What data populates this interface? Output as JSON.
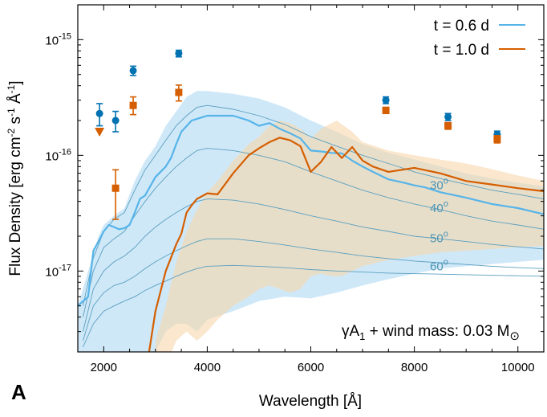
{
  "panel_label": "A",
  "chart_data": {
    "type": "line",
    "xlabel": "Wavelength [Å]",
    "ylabel": {
      "main": "Flux Density [erg cm",
      "sup1": "-2",
      "mid1": " s",
      "sup2": "-1",
      "mid2": " Å",
      "sup3": "-1",
      "end": "]"
    },
    "xlim": [
      1500,
      10500
    ],
    "ylim": [
      2e-18,
      2e-15
    ],
    "yscale": "log",
    "x_ticks": [
      2000,
      4000,
      6000,
      8000,
      10000
    ],
    "x_tick_labels": [
      "2000",
      "4000",
      "6000",
      "8000",
      "10000"
    ],
    "y_ticks": [
      1e-17,
      1e-16,
      1e-15
    ],
    "y_tick_labels": [
      {
        "base": "10",
        "exp": "-17"
      },
      {
        "base": "10",
        "exp": "-16"
      },
      {
        "base": "10",
        "exp": "-15"
      }
    ],
    "annotation": {
      "prefix": "γA",
      "sub": "1",
      "mid": " + wind mass: 0.03 M",
      "sub2": "⊙"
    },
    "colors": {
      "blue": "#56B4E9",
      "blue_band": "#bfe0f5",
      "blue_thin": "#5a9fbf",
      "orange": "#D55E00",
      "orange_band": "#f7d7ab",
      "blue_data": "#0072B2",
      "orange_data": "#D55E00",
      "angle_label": "#4a94b4"
    },
    "series": [
      {
        "name": "t = 0.6 d",
        "color": "#56B4E9",
        "x": [
          1500,
          1700,
          1800,
          1900,
          2000,
          2100,
          2200,
          2300,
          2400,
          2500,
          2600,
          2700,
          2800,
          3000,
          3200,
          3300,
          3400,
          3500,
          3700,
          4000,
          4200,
          4500,
          4800,
          5000,
          5200,
          5400,
          5600,
          5800,
          6000,
          6200,
          6400,
          6600,
          6800,
          7000,
          7200,
          7500,
          7800,
          8000,
          8200,
          8500,
          9000,
          9500,
          10000,
          10500
        ],
        "y": [
          5e-18,
          6e-18,
          1.5e-17,
          1.8e-17,
          2.2e-17,
          2.5e-17,
          2.4e-17,
          2.3e-17,
          2.35e-17,
          2.5e-17,
          3.2e-17,
          4.2e-17,
          4.5e-17,
          6.5e-17,
          8e-17,
          9.5e-17,
          1.25e-16,
          1.6e-16,
          2e-16,
          2.2e-16,
          2.2e-16,
          2.2e-16,
          2e-16,
          1.8e-16,
          1.9e-16,
          1.7e-16,
          1.55e-16,
          1.4e-16,
          1.1e-16,
          1.08e-16,
          1.05e-16,
          1.04e-16,
          9e-17,
          8e-17,
          7.2e-17,
          6.2e-17,
          5.8e-17,
          5.5e-17,
          5.3e-17,
          4.8e-17,
          4.3e-17,
          3.8e-17,
          3.5e-17,
          3.1e-17
        ]
      },
      {
        "name": "t = 1.0 d",
        "color": "#D55E00",
        "x": [
          2800,
          3000,
          3200,
          3400,
          3500,
          3600,
          3700,
          3800,
          4000,
          4200,
          4500,
          4800,
          5000,
          5200,
          5400,
          5600,
          5800,
          6000,
          6200,
          6400,
          6600,
          6800,
          7000,
          7200,
          7500,
          8000,
          8500,
          9000,
          9500,
          10000,
          10500
        ],
        "y": [
          1.2e-18,
          4.5e-18,
          1e-17,
          1.7e-17,
          2.1e-17,
          3.2e-17,
          3.7e-17,
          4.2e-17,
          4.7e-17,
          4.6e-17,
          7e-17,
          1e-16,
          1.15e-16,
          1.3e-16,
          1.42e-16,
          1.35e-16,
          1.2e-16,
          7.2e-17,
          8.8e-17,
          1.18e-16,
          9.5e-17,
          1.18e-16,
          9e-17,
          8e-17,
          7.2e-17,
          7.8e-17,
          7e-17,
          6e-17,
          5.6e-17,
          5.2e-17,
          4.9e-17
        ]
      }
    ],
    "bands": [
      {
        "name": "t = 0.6 d band",
        "color": "#bfe0f5",
        "x": [
          1500,
          1700,
          1900,
          2000,
          2200,
          2400,
          2600,
          2800,
          3000,
          3200,
          3400,
          3600,
          3800,
          4000,
          4500,
          5000,
          5500,
          6000,
          6500,
          7000,
          7500,
          8000,
          8500,
          9000,
          9500,
          10000,
          10500
        ],
        "upper": [
          5e-18,
          1e-17,
          2e-17,
          2.5e-17,
          3e-17,
          3.5e-17,
          6e-17,
          9e-17,
          1.2e-16,
          1.8e-16,
          2.4e-16,
          3.2e-16,
          3.6e-16,
          3.6e-16,
          3.4e-16,
          3.1e-16,
          2.6e-16,
          2e-16,
          1.6e-16,
          1.25e-16,
          1.05e-16,
          9.2e-17,
          8e-17,
          7e-17,
          6.3e-17,
          5.8e-17,
          5.4e-17
        ],
        "lower": [
          2e-18,
          2e-18,
          2e-18,
          2e-18,
          2e-18,
          2e-18,
          2e-18,
          2e-18,
          2e-18,
          3e-18,
          3.5e-18,
          3.5e-18,
          3e-18,
          3.8e-18,
          4.5e-18,
          5.5e-18,
          6e-18,
          5.8e-18,
          6.5e-18,
          7.5e-18,
          8.5e-18,
          9.5e-18,
          1.05e-17,
          1.1e-17,
          1.15e-17,
          1.2e-17,
          1.25e-17
        ]
      },
      {
        "name": "t = 1.0 d band",
        "color": "#f7d7ab",
        "x": [
          3000,
          3200,
          3400,
          3600,
          3800,
          4000,
          4200,
          4500,
          4800,
          5000,
          5200,
          5400,
          5600,
          5800,
          6000,
          6200,
          6400,
          6500,
          6600,
          6800,
          7000,
          7500,
          8000,
          8500,
          9000,
          9500,
          10000,
          10500
        ],
        "upper": [
          2.5e-18,
          5e-18,
          1.2e-17,
          2.2e-17,
          3.4e-17,
          4.8e-17,
          6e-17,
          9e-17,
          1.25e-16,
          1.45e-16,
          1.8e-16,
          2e-16,
          1.9e-16,
          1.7e-16,
          1.4e-16,
          1.7e-16,
          1.9e-16,
          2e-16,
          1.85e-16,
          1.6e-16,
          1.3e-16,
          1.1e-16,
          1e-16,
          9.2e-17,
          8.5e-17,
          7.6e-17,
          6.7e-17,
          6e-17
        ],
        "lower": [
          1e-18,
          1.5e-18,
          2.5e-18,
          3e-18,
          2.5e-18,
          3e-18,
          3.8e-18,
          5e-18,
          6e-18,
          7e-18,
          7.5e-18,
          7e-18,
          6.5e-18,
          7e-18,
          9e-18,
          9.5e-18,
          9e-18,
          9e-18,
          9e-18,
          1e-17,
          1.1e-17,
          1.25e-17,
          1.35e-17,
          1.45e-17,
          1.5e-17,
          1.55e-17,
          1.6e-17,
          1.65e-17
        ]
      }
    ],
    "angle_curves": [
      {
        "label": "30",
        "label_x": 8300,
        "label_y": 5.6e-17,
        "x": [
          1600,
          1800,
          2000,
          2200,
          2400,
          2600,
          2800,
          3000,
          3200,
          3400,
          3600,
          3800,
          4000,
          4500,
          5000,
          5500,
          6000,
          6500,
          7000,
          7500,
          8000,
          8500,
          9000,
          9500,
          10000,
          10500
        ],
        "y": [
          5e-18,
          1.3e-17,
          2.2e-17,
          2.8e-17,
          3.2e-17,
          5e-17,
          7.5e-17,
          1e-16,
          1.35e-16,
          1.8e-16,
          2.2e-16,
          2.6e-16,
          2.7e-16,
          2.5e-16,
          2.2e-16,
          1.85e-16,
          1.45e-16,
          1.2e-16,
          1e-16,
          8.5e-17,
          7.2e-17,
          6.3e-17,
          5.6e-17,
          5e-17,
          4.6e-17,
          4.2e-17
        ]
      },
      {
        "label": "40",
        "label_x": 8300,
        "label_y": 3.55e-17,
        "x": [
          1600,
          1800,
          2000,
          2200,
          2400,
          2600,
          2800,
          3000,
          3200,
          3400,
          3600,
          3800,
          4000,
          4500,
          5000,
          5500,
          6000,
          6500,
          7000,
          7500,
          8000,
          8500,
          9000,
          9500,
          10000,
          10500
        ],
        "y": [
          4e-18,
          1e-17,
          1.6e-17,
          1.9e-17,
          2.2e-17,
          3e-17,
          4e-17,
          5.2e-17,
          6.5e-17,
          8e-17,
          9.5e-17,
          1.1e-16,
          1.15e-16,
          1.1e-16,
          1e-16,
          8.8e-17,
          7.2e-17,
          6e-17,
          5e-17,
          4.3e-17,
          3.8e-17,
          3.4e-17,
          3e-17,
          2.7e-17,
          2.5e-17,
          2.3e-17
        ]
      },
      {
        "label": "50",
        "label_x": 8300,
        "label_y": 1.95e-17,
        "x": [
          1600,
          1800,
          2000,
          2200,
          2400,
          2600,
          2800,
          3000,
          3200,
          3400,
          3600,
          3800,
          4000,
          4500,
          5000,
          5500,
          6000,
          6500,
          7000,
          7500,
          8000,
          8500,
          9000,
          9500,
          10000,
          10500
        ],
        "y": [
          3e-18,
          7e-18,
          1e-17,
          1.2e-17,
          1.35e-17,
          1.6e-17,
          2e-17,
          2.4e-17,
          2.8e-17,
          3.2e-17,
          3.6e-17,
          4e-17,
          4.2e-17,
          4.1e-17,
          3.8e-17,
          3.4e-17,
          3e-17,
          2.7e-17,
          2.4e-17,
          2.2e-17,
          2e-17,
          1.9e-17,
          1.8e-17,
          1.7e-17,
          1.62e-17,
          1.55e-17
        ]
      },
      {
        "label": "60",
        "label_x": 8300,
        "label_y": 1.12e-17,
        "x": [
          1600,
          1800,
          2000,
          2200,
          2400,
          2600,
          2800,
          3000,
          3200,
          3400,
          3600,
          3800,
          4000,
          4500,
          5000,
          5500,
          6000,
          6500,
          7000,
          7500,
          8000,
          8500,
          9000,
          9500,
          10000,
          10500
        ],
        "y": [
          2.5e-18,
          5e-18,
          6.5e-18,
          7.5e-18,
          8e-18,
          9e-18,
          1.05e-17,
          1.2e-17,
          1.35e-17,
          1.5e-17,
          1.65e-17,
          1.8e-17,
          1.9e-17,
          1.9e-17,
          1.8e-17,
          1.68e-17,
          1.55e-17,
          1.45e-17,
          1.35e-17,
          1.28e-17,
          1.22e-17,
          1.18e-17,
          1.14e-17,
          1.1e-17,
          1.07e-17,
          1.05e-17
        ]
      },
      {
        "label": "",
        "label_x": 0,
        "label_y": 0,
        "x": [
          1600,
          1800,
          2000,
          2200,
          2400,
          2600,
          2800,
          3000,
          3200,
          3400,
          3600,
          3800,
          4000,
          4500,
          5000,
          5500,
          6000,
          6500,
          7000,
          7500,
          8000,
          8500,
          9000,
          9500,
          10000,
          10500
        ],
        "y": [
          2.2e-18,
          3.5e-18,
          4.5e-18,
          5e-18,
          5.5e-18,
          6e-18,
          6.8e-18,
          7.5e-18,
          8.2e-18,
          9e-18,
          9.8e-18,
          1.05e-17,
          1.1e-17,
          1.12e-17,
          1.1e-17,
          1.07e-17,
          1.03e-17,
          1e-17,
          9.8e-18,
          9.6e-18,
          9.5e-18,
          9.4e-18,
          9.3e-18,
          9.2e-18,
          9.1e-18,
          9e-18
        ]
      }
    ],
    "angle_unit": "o",
    "observations": [
      {
        "name": "t = 0.6 d data",
        "color": "#0072B2",
        "marker": "circle",
        "x": [
          1920,
          2230,
          2570,
          3450,
          7450,
          8650,
          9600
        ],
        "y": [
          2.3e-16,
          2e-16,
          5.4e-16,
          7.6e-16,
          3e-16,
          2.15e-16,
          1.52e-16
        ],
        "err_lo": [
          1.8e-16,
          1.6e-16,
          4.9e-16,
          7.1e-16,
          2.8e-16,
          2e-16,
          1.42e-16
        ],
        "err_hi": [
          2.8e-16,
          2.4e-16,
          5.9e-16,
          8.1e-16,
          3.2e-16,
          2.3e-16,
          1.62e-16
        ]
      },
      {
        "name": "t = 1.0 d data",
        "color": "#D55E00",
        "marker": "square",
        "x": [
          2230,
          2570,
          3450,
          7450,
          8650,
          9600
        ],
        "y": [
          5.2e-17,
          2.7e-16,
          3.5e-16,
          2.45e-16,
          1.8e-16,
          1.38e-16
        ],
        "err_lo": [
          2.8e-17,
          2.25e-16,
          2.95e-16,
          2.3e-16,
          1.68e-16,
          1.28e-16
        ],
        "err_hi": [
          7.5e-17,
          3.2e-16,
          4.05e-16,
          2.6e-16,
          1.92e-16,
          1.48e-16
        ]
      },
      {
        "name": "t = 1.0 d upper limit",
        "color": "#D55E00",
        "marker": "triangle-down",
        "x": [
          1920
        ],
        "y": [
          1.6e-16
        ],
        "err_lo": [],
        "err_hi": []
      }
    ],
    "legend": [
      {
        "label": "t = 0.6 d",
        "color": "#56B4E9"
      },
      {
        "label": "t = 1.0 d",
        "color": "#D55E00"
      }
    ]
  }
}
